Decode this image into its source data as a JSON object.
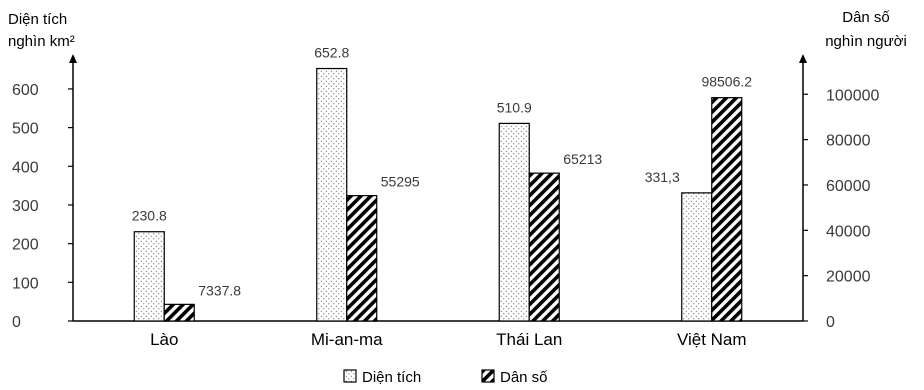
{
  "chart_data": {
    "type": "bar",
    "categories": [
      "Lào",
      "Mi-an-ma",
      "Thái Lan",
      "Việt Nam"
    ],
    "left_axis": {
      "title_line1": "Diện tích",
      "title_line2": "nghìn km²",
      "ylim": [
        0,
        680
      ],
      "ticks": [
        0,
        100,
        200,
        300,
        400,
        500,
        600
      ]
    },
    "right_axis": {
      "title_line1": "Dân số",
      "title_line2": "nghìn người",
      "ylim": [
        0,
        116000
      ],
      "ticks": [
        0,
        20000,
        40000,
        60000,
        80000,
        100000
      ]
    },
    "series": [
      {
        "name": "Diện tích",
        "axis": "left",
        "pattern": "dots",
        "values": [
          230.8,
          652.8,
          510.9,
          331.3
        ],
        "labels": [
          "230.8",
          "652.8",
          "510.9",
          "331,3"
        ]
      },
      {
        "name": "Dân số",
        "axis": "right",
        "pattern": "hatch",
        "values": [
          7337.8,
          55295,
          65213,
          98506.2
        ],
        "labels": [
          "7337.8",
          "55295",
          "65213",
          "98506.2"
        ]
      }
    ],
    "legend_placement": "bottom-center",
    "grid": false
  }
}
